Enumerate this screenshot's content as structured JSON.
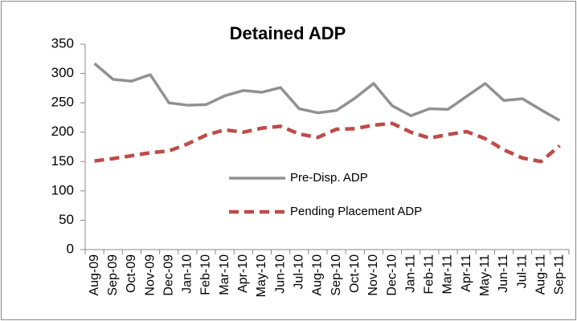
{
  "chart_data": {
    "type": "line",
    "title": "Detained ADP",
    "categories": [
      "Aug-09",
      "Sep-09",
      "Oct-09",
      "Nov-09",
      "Dec-09",
      "Jan-10",
      "Feb-10",
      "Mar-10",
      "Apr-10",
      "May-10",
      "Jun-10",
      "Jul-10",
      "Aug-10",
      "Sep-10",
      "Oct-10",
      "Nov-10",
      "Dec-10",
      "Jan-11",
      "Feb-11",
      "Mar-11",
      "Apr-11",
      "May-11",
      "Jun-11",
      "Jul-11",
      "Aug-11",
      "Sep-11"
    ],
    "series": [
      {
        "name": "Pre-Disp. ADP",
        "color": "#919191",
        "dash": false,
        "values": [
          317,
          290,
          287,
          298,
          250,
          246,
          247,
          262,
          271,
          268,
          276,
          240,
          233,
          237,
          258,
          283,
          245,
          228,
          240,
          239,
          261,
          283,
          254,
          257,
          238,
          220
        ]
      },
      {
        "name": "Pending Placement ADP",
        "color": "#be4b48",
        "dash": true,
        "values": [
          151,
          155,
          160,
          165,
          168,
          180,
          195,
          204,
          200,
          207,
          210,
          197,
          191,
          205,
          206,
          212,
          215,
          200,
          190,
          196,
          201,
          189,
          170,
          156,
          150,
          177
        ]
      }
    ],
    "ylim": [
      0,
      350
    ],
    "yticks": [
      0,
      50,
      100,
      150,
      200,
      250,
      300,
      350
    ],
    "grid": false,
    "legend": "center"
  }
}
